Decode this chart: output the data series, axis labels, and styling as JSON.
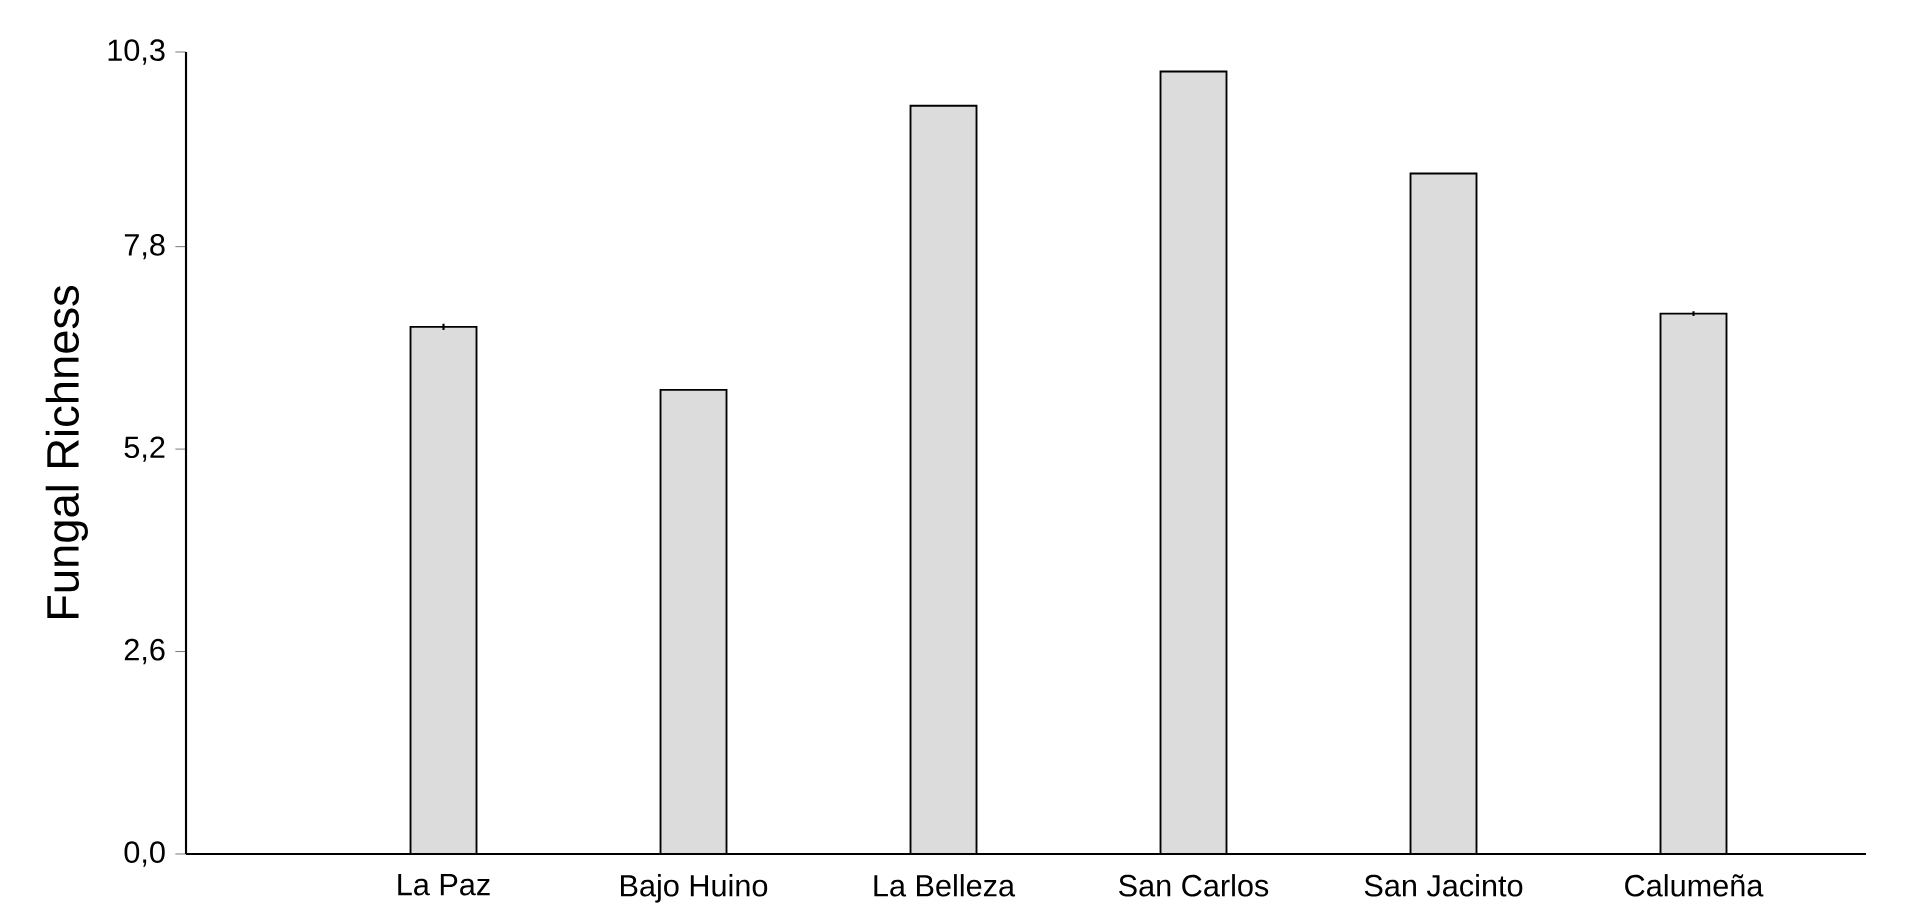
{
  "chart_data": {
    "type": "bar",
    "ylabel": "Fungal  Richness",
    "categories": [
      "La Paz",
      "Bajo Huino",
      "La Belleza",
      "San Carlos",
      "San Jacinto",
      "Calumeña"
    ],
    "values": [
      6.77,
      5.96,
      9.61,
      10.05,
      8.74,
      6.94
    ],
    "color": "#dcdcdc",
    "ylim": [
      0,
      10.3
    ],
    "yticks": [
      {
        "value": 0,
        "label": "0,0"
      },
      {
        "value": 2.6,
        "label": "2,6"
      },
      {
        "value": 5.2,
        "label": "5,2"
      },
      {
        "value": 7.8,
        "label": "7,8"
      },
      {
        "value": 10.3,
        "label": "10,3"
      }
    ],
    "errors": [
      0.04,
      null,
      null,
      null,
      null,
      0.03
    ],
    "grid": false
  }
}
